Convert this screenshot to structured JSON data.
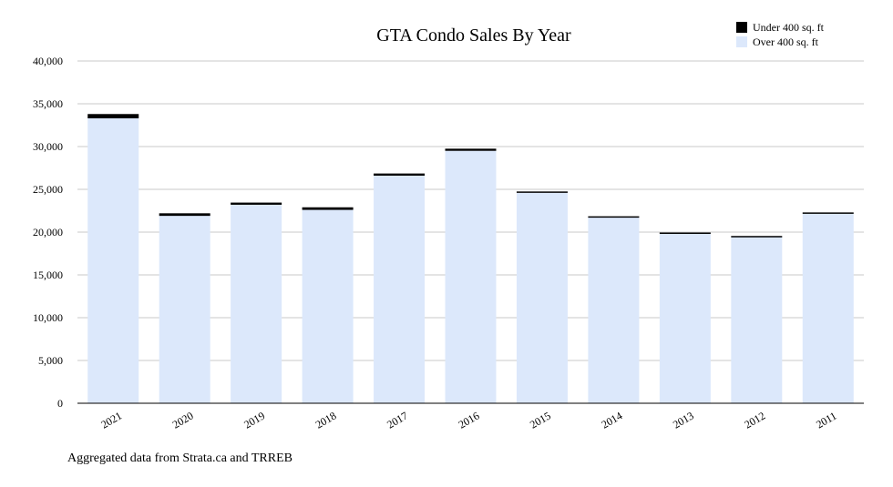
{
  "chart_data": {
    "type": "bar",
    "stacked": true,
    "title": "GTA Condo Sales By Year",
    "categories": [
      "2021",
      "2020",
      "2019",
      "2018",
      "2017",
      "2016",
      "2015",
      "2014",
      "2013",
      "2012",
      "2011"
    ],
    "series": [
      {
        "name": "Over 400 sq. ft",
        "color": "#dce8fb",
        "values": [
          33300,
          21900,
          23200,
          22600,
          26600,
          29500,
          24600,
          21700,
          19800,
          19450,
          22150
        ]
      },
      {
        "name": "Under 400 sq. ft",
        "color": "#000000",
        "values": [
          500,
          300,
          250,
          300,
          250,
          250,
          150,
          150,
          150,
          100,
          150
        ]
      }
    ],
    "ylim": [
      0,
      40000
    ],
    "yticks": [
      0,
      5000,
      10000,
      15000,
      20000,
      25000,
      30000,
      35000,
      40000
    ],
    "ytick_labels": [
      "0",
      "5,000",
      "10,000",
      "15,000",
      "20,000",
      "25,000",
      "30,000",
      "35,000",
      "40,000"
    ],
    "xlabel": "",
    "ylabel": "",
    "grid": true,
    "legend_position": "top-right"
  },
  "legend": [
    {
      "label": "Under 400 sq. ft",
      "color": "#000000"
    },
    {
      "label": "Over 400 sq. ft",
      "color": "#dce8fb"
    }
  ],
  "footnote": "Aggregated data from Strata.ca and TRREB"
}
